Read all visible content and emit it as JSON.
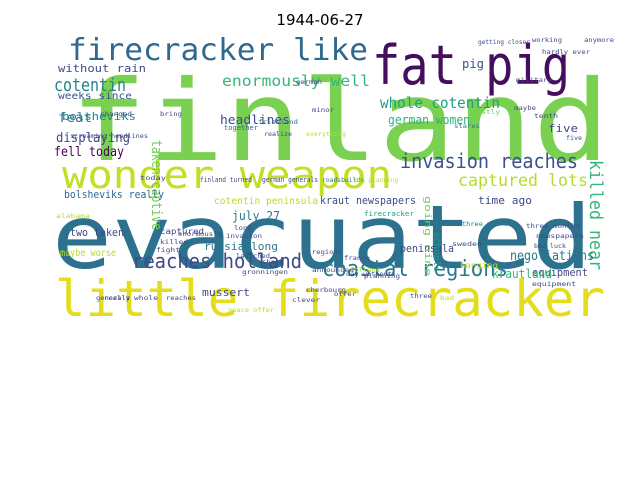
{
  "title": "1944-06-27",
  "palette": {
    "background": "#ffffff",
    "dark_purple": "#440154",
    "indigo": "#482878",
    "blue": "#3e4989",
    "steel_blue": "#31688e",
    "teal_blue": "#26828e",
    "teal": "#1f9e89",
    "green": "#35b779",
    "light_green": "#6ece58",
    "lime": "#b5de2b",
    "yellow": "#e4dd1b"
  },
  "words": [
    {
      "text": "finland",
      "color": "#7ad151"
    },
    {
      "text": "evacuated",
      "color": "#2c728e"
    },
    {
      "text": "little firecracker",
      "color": "#e4dd1b"
    },
    {
      "text": "fat pig",
      "color": "#450d5e"
    },
    {
      "text": "firecracker like",
      "color": "#31688e"
    },
    {
      "text": "wonder weapon",
      "color": "#c2df23"
    },
    {
      "text": "invasion reaches",
      "color": "#3b528b"
    },
    {
      "text": "coastal regions",
      "color": "#2a788e"
    },
    {
      "text": "reaches holland",
      "color": "#3e4a89"
    },
    {
      "text": "cotentin",
      "color": "#26828e"
    },
    {
      "text": "enormously well",
      "color": "#35b779"
    },
    {
      "text": "whole cotentin",
      "color": "#1f9e89"
    },
    {
      "text": "captured lots",
      "color": "#b5de2b"
    },
    {
      "text": "killed near",
      "color": "#35b779"
    },
    {
      "text": "german women",
      "color": "#2db27d"
    },
    {
      "text": "headlines",
      "color": "#3e4989"
    },
    {
      "text": "taken captive",
      "color": "#6ece58"
    },
    {
      "text": "without rain",
      "color": "#3e4a89"
    },
    {
      "text": "weeks since",
      "color": "#3b528b"
    },
    {
      "text": "bolsheviks",
      "color": "#25848e"
    },
    {
      "text": "feat",
      "color": "#2a788e"
    },
    {
      "text": "displaying",
      "color": "#3e4989"
    },
    {
      "text": "fell today",
      "color": "#440154"
    },
    {
      "text": "bolsheviks really",
      "color": "#31688e"
    },
    {
      "text": "pig",
      "color": "#3b528b"
    },
    {
      "text": "five",
      "color": "#3e4989"
    },
    {
      "text": "july 27",
      "color": "#2a788e"
    },
    {
      "text": "two taken",
      "color": "#3e4989"
    },
    {
      "text": "time ago",
      "color": "#3e4989"
    },
    {
      "text": "negotiations",
      "color": "#2a788e"
    },
    {
      "text": "equipment",
      "color": "#3e4989"
    },
    {
      "text": "russia long",
      "color": "#2a788e"
    },
    {
      "text": "mussert",
      "color": "#3e4989"
    },
    {
      "text": "maybe worse",
      "color": "#b5de2b"
    },
    {
      "text": "peninsula",
      "color": "#3e4989"
    },
    {
      "text": "krautland",
      "color": "#35b779"
    },
    {
      "text": "cotentin peninsula",
      "color": "#b5de2b"
    },
    {
      "text": "kraut newspapers",
      "color": "#3e4989"
    },
    {
      "text": "going nine",
      "color": "#6ece58"
    },
    {
      "text": "schools",
      "color": "#1f9e89"
    },
    {
      "text": "captured",
      "color": "#3e4989"
    },
    {
      "text": "hanging",
      "color": "#b5de2b"
    },
    {
      "text": "finland turned",
      "color": "#3e4989"
    },
    {
      "text": "german generals",
      "color": "#3e4989"
    },
    {
      "text": "roadsbuilds",
      "color": "#2a788e"
    },
    {
      "text": "pig planning",
      "color": "#b5de2b"
    },
    {
      "text": "announced",
      "color": "#3e4989"
    },
    {
      "text": "launched",
      "color": "#3e4989"
    },
    {
      "text": "together",
      "color": "#31688e"
    },
    {
      "text": "everything",
      "color": "#b5de2b"
    },
    {
      "text": "today",
      "color": "#3e4989"
    },
    {
      "text": "friesland",
      "color": "#2a788e"
    },
    {
      "text": "generals",
      "color": "#3e4989"
    },
    {
      "text": "fight",
      "color": "#3e4989"
    },
    {
      "text": "killed",
      "color": "#3e4989"
    },
    {
      "text": "firecracker",
      "color": "#1f9e89"
    },
    {
      "text": "regions",
      "color": "#3e4989"
    },
    {
      "text": "france",
      "color": "#3e4989"
    },
    {
      "text": "holland",
      "color": "#b5de2b"
    },
    {
      "text": "share",
      "color": "#3e4989"
    },
    {
      "text": "stares",
      "color": "#2a788e"
    },
    {
      "text": "really",
      "color": "#3e4989"
    },
    {
      "text": "whole",
      "color": "#3e4989"
    },
    {
      "text": "reaches",
      "color": "#3e4989"
    },
    {
      "text": "clever",
      "color": "#3e4989"
    },
    {
      "text": "three",
      "color": "#3e4989"
    },
    {
      "text": "bad",
      "color": "#b5de2b"
    },
    {
      "text": "peace offer",
      "color": "#b5de2b"
    },
    {
      "text": "getting closer",
      "color": "#3e4989"
    },
    {
      "text": "working",
      "color": "#3e4989"
    },
    {
      "text": "military",
      "color": "#3e4989"
    },
    {
      "text": "bad luck",
      "color": "#3e4989"
    },
    {
      "text": "maybe",
      "color": "#3e4989"
    },
    {
      "text": "tenth",
      "color": "#3e4989"
    },
    {
      "text": "five",
      "color": "#3e4989"
    },
    {
      "text": "newspapers",
      "color": "#3e4989"
    },
    {
      "text": "three weeks",
      "color": "#2a788e"
    },
    {
      "text": "day without",
      "color": "#3e4989"
    },
    {
      "text": "gronningen",
      "color": "#3e4989"
    },
    {
      "text": "three months",
      "color": "#3e4989"
    },
    {
      "text": "german",
      "color": "#3e4989"
    },
    {
      "text": "mostly",
      "color": "#6ece58"
    },
    {
      "text": "hardly ever",
      "color": "#3e4989"
    },
    {
      "text": "planning",
      "color": "#3e4989"
    },
    {
      "text": "cherbourg",
      "color": "#3e4989"
    },
    {
      "text": "sweden",
      "color": "#3e4989"
    },
    {
      "text": "invasion",
      "color": "#3e4989"
    },
    {
      "text": "enormously",
      "color": "#3e4989"
    },
    {
      "text": "long",
      "color": "#3e4989"
    },
    {
      "text": "realize",
      "color": "#3e4989"
    },
    {
      "text": "minor",
      "color": "#3e4989"
    },
    {
      "text": "bring",
      "color": "#3e4989"
    },
    {
      "text": "changed",
      "color": "#3e4989"
    },
    {
      "text": "screaming headlines",
      "color": "#3e4989"
    },
    {
      "text": "anymore",
      "color": "#3e4989"
    },
    {
      "text": "alabama",
      "color": "#b5de2b"
    },
    {
      "text": "offer",
      "color": "#3e4989"
    },
    {
      "text": "equipment",
      "color": "#3e4989"
    }
  ]
}
